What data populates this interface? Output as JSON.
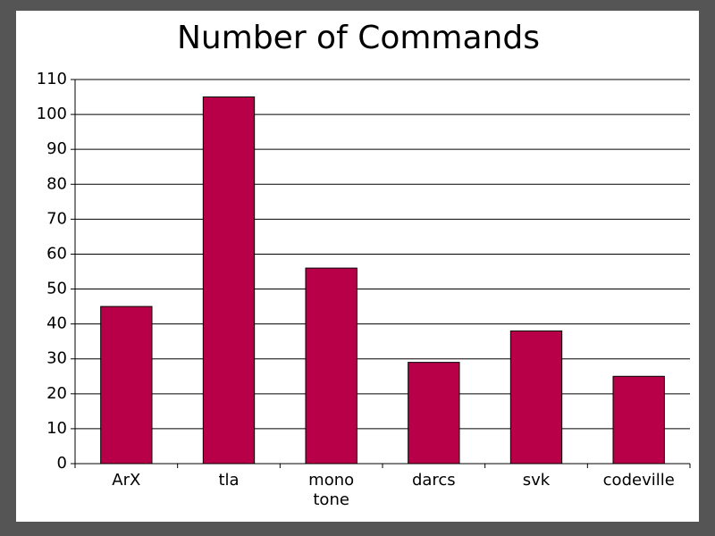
{
  "chart_data": {
    "type": "bar",
    "title": "Number of Commands",
    "categories": [
      "ArX",
      "tla",
      "mono tone",
      "darcs",
      "svk",
      "codeville"
    ],
    "values": [
      45,
      105,
      56,
      29,
      38,
      25
    ],
    "color": "#b80048",
    "ylim": [
      0,
      110
    ],
    "yticks": [
      0,
      10,
      20,
      30,
      40,
      50,
      60,
      70,
      80,
      90,
      100,
      110
    ],
    "grid": true
  }
}
